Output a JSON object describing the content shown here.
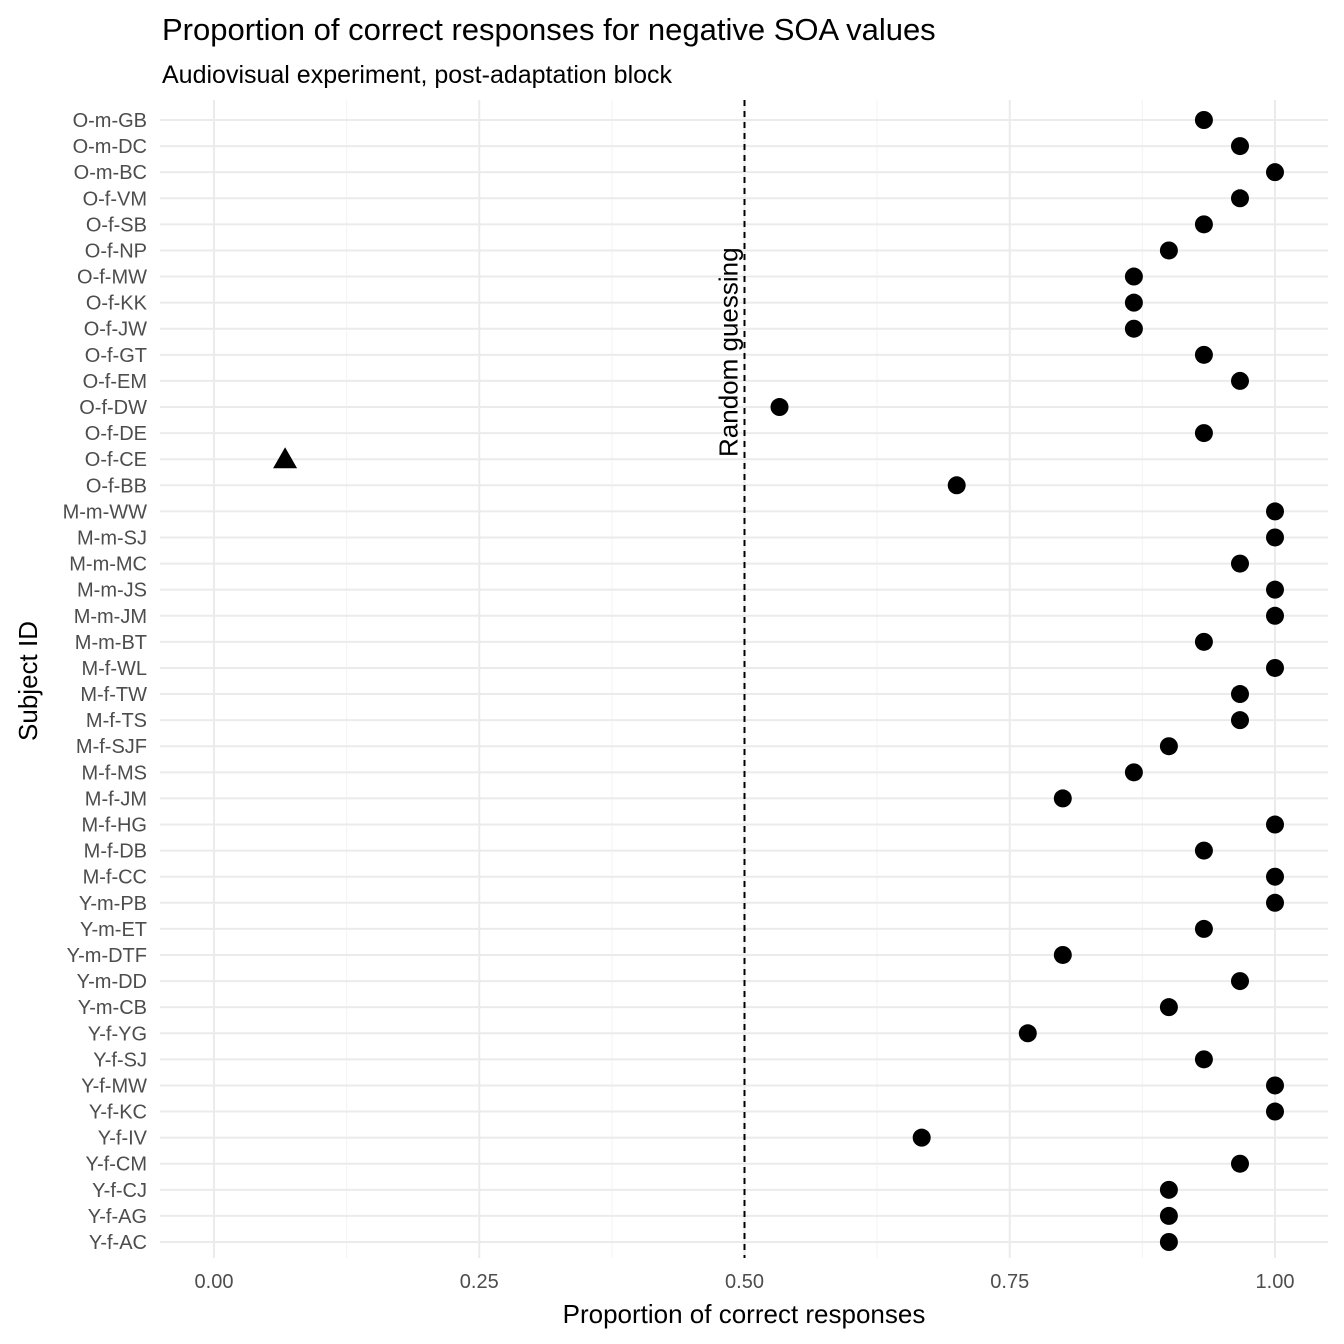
{
  "chart_data": {
    "type": "scatter",
    "title": "Proportion of correct responses for negative SOA values",
    "subtitle": "Audiovisual experiment, post-adaptation block",
    "xlabel": "Proportion of correct responses",
    "ylabel": "Subject ID",
    "xlim": [
      -0.05,
      1.05
    ],
    "x_ticks": [
      "0.00",
      "0.25",
      "0.50",
      "0.75",
      "1.00"
    ],
    "x_tick_values": [
      0.0,
      0.25,
      0.5,
      0.75,
      1.0
    ],
    "grid": true,
    "reference_line": {
      "x": 0.5,
      "style": "dashed",
      "label": "Random guessing"
    },
    "categories": [
      "O-m-GB",
      "O-m-DC",
      "O-m-BC",
      "O-f-VM",
      "O-f-SB",
      "O-f-NP",
      "O-f-MW",
      "O-f-KK",
      "O-f-JW",
      "O-f-GT",
      "O-f-EM",
      "O-f-DW",
      "O-f-DE",
      "O-f-CE",
      "O-f-BB",
      "M-m-WW",
      "M-m-SJ",
      "M-m-MC",
      "M-m-JS",
      "M-m-JM",
      "M-m-BT",
      "M-f-WL",
      "M-f-TW",
      "M-f-TS",
      "M-f-SJF",
      "M-f-MS",
      "M-f-JM",
      "M-f-HG",
      "M-f-DB",
      "M-f-CC",
      "Y-m-PB",
      "Y-m-ET",
      "Y-m-DTF",
      "Y-m-DD",
      "Y-m-CB",
      "Y-f-YG",
      "Y-f-SJ",
      "Y-f-MW",
      "Y-f-KC",
      "Y-f-IV",
      "Y-f-CM",
      "Y-f-CJ",
      "Y-f-AG",
      "Y-f-AC"
    ],
    "values": [
      0.933,
      0.967,
      1.0,
      0.967,
      0.933,
      0.9,
      0.867,
      0.867,
      0.867,
      0.933,
      0.967,
      0.533,
      0.933,
      0.067,
      0.7,
      1.0,
      1.0,
      0.967,
      1.0,
      1.0,
      0.933,
      1.0,
      0.967,
      0.967,
      0.9,
      0.867,
      0.8,
      1.0,
      0.933,
      1.0,
      1.0,
      0.933,
      0.8,
      0.967,
      0.9,
      0.767,
      0.933,
      1.0,
      1.0,
      0.667,
      0.967,
      0.9,
      0.9,
      0.9
    ],
    "markers": [
      "circle",
      "circle",
      "circle",
      "circle",
      "circle",
      "circle",
      "circle",
      "circle",
      "circle",
      "circle",
      "circle",
      "circle",
      "circle",
      "triangle",
      "circle",
      "circle",
      "circle",
      "circle",
      "circle",
      "circle",
      "circle",
      "circle",
      "circle",
      "circle",
      "circle",
      "circle",
      "circle",
      "circle",
      "circle",
      "circle",
      "circle",
      "circle",
      "circle",
      "circle",
      "circle",
      "circle",
      "circle",
      "circle",
      "circle",
      "circle",
      "circle",
      "circle",
      "circle",
      "circle"
    ],
    "colors": {
      "point": "#000000",
      "grid_major": "#ebebeb",
      "grid_minor": "#f5f5f5",
      "tick_text": "#4d4d4d"
    }
  }
}
